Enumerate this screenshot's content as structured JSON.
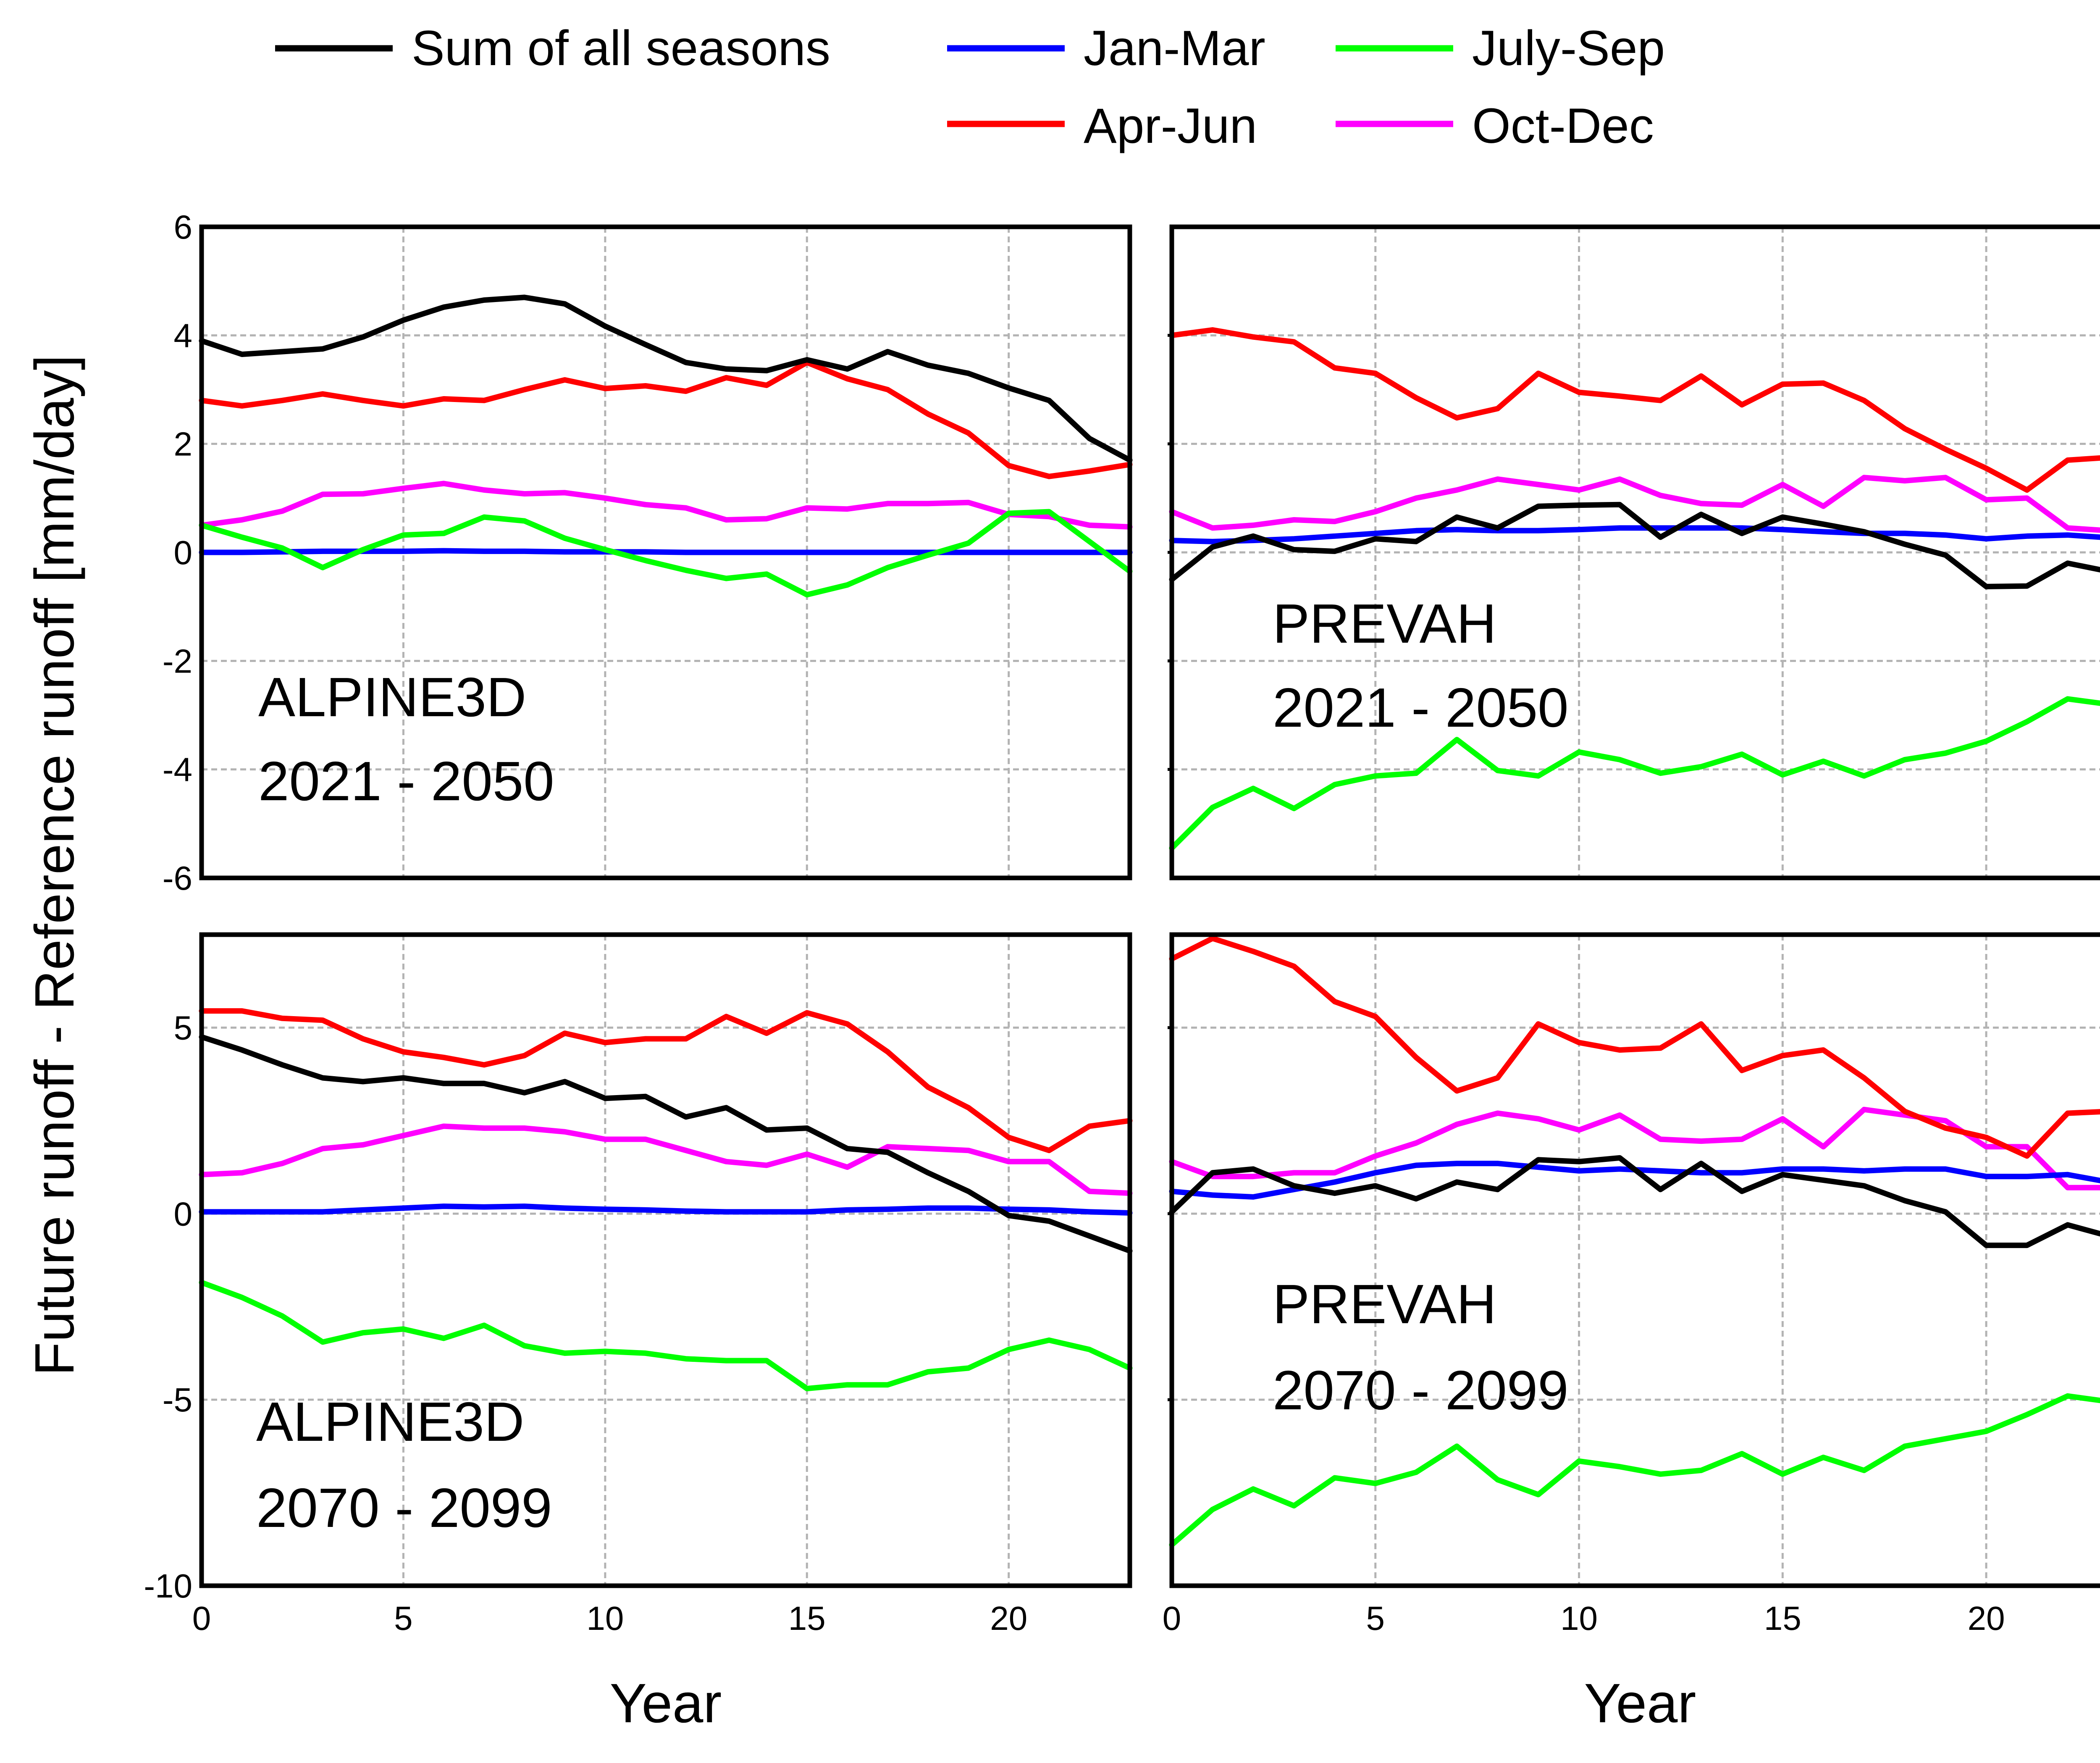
{
  "colors": {
    "sum": "#000000",
    "janmar": "#0000ff",
    "aprjun": "#ff0000",
    "julsep": "#00ff00",
    "octdec": "#ff00ff"
  },
  "legend": {
    "items": [
      {
        "key": "sum",
        "label": "Sum of all seasons"
      },
      {
        "key": "janmar",
        "label": "Jan-Mar"
      },
      {
        "key": "julsep",
        "label": "July-Sep"
      },
      {
        "key": "aprjun",
        "label": "Apr-Jun"
      },
      {
        "key": "octdec",
        "label": "Oct-Dec"
      }
    ]
  },
  "ylabel": "Future runoff - Reference runoff [mm/day]",
  "chart_data": [
    {
      "type": "line",
      "model": "ALPINE3D",
      "period": "2021 - 2050",
      "xlabel": "",
      "xlim": [
        0,
        23
      ],
      "ylim": [
        -6,
        6
      ],
      "xticks": [
        0,
        5,
        10,
        15,
        20
      ],
      "yticks": [
        -6,
        -4,
        -2,
        0,
        2,
        4,
        6
      ],
      "grid": true,
      "x": [
        0,
        1,
        2,
        3,
        4,
        5,
        6,
        7,
        8,
        9,
        10,
        11,
        12,
        13,
        14,
        15,
        16,
        17,
        18,
        19,
        20,
        21,
        22,
        23
      ],
      "series": [
        {
          "name": "Sum of all seasons",
          "key": "sum",
          "values": [
            3.9,
            3.65,
            3.7,
            3.75,
            3.97,
            4.28,
            4.52,
            4.65,
            4.7,
            4.58,
            4.17,
            3.83,
            3.5,
            3.38,
            3.35,
            3.55,
            3.38,
            3.7,
            3.45,
            3.3,
            3.03,
            2.8,
            2.1,
            1.7
          ]
        },
        {
          "name": "Jan-Mar",
          "key": "janmar",
          "values": [
            0.0,
            0.0,
            0.01,
            0.02,
            0.02,
            0.02,
            0.03,
            0.02,
            0.02,
            0.01,
            0.01,
            0.01,
            0.0,
            0.0,
            0.0,
            0.0,
            0.0,
            0.0,
            0.0,
            0.0,
            0.0,
            0.0,
            0.0,
            0.0
          ]
        },
        {
          "name": "Apr-Jun",
          "key": "aprjun",
          "values": [
            2.8,
            2.7,
            2.8,
            2.92,
            2.8,
            2.7,
            2.83,
            2.8,
            3.0,
            3.18,
            3.02,
            3.07,
            2.97,
            3.22,
            3.08,
            3.5,
            3.2,
            3.0,
            2.55,
            2.2,
            1.6,
            1.4,
            1.5,
            1.62
          ]
        },
        {
          "name": "July-Sep",
          "key": "julsep",
          "values": [
            0.5,
            0.28,
            0.08,
            -0.28,
            0.05,
            0.32,
            0.35,
            0.65,
            0.58,
            0.26,
            0.05,
            -0.15,
            -0.33,
            -0.48,
            -0.4,
            -0.78,
            -0.6,
            -0.28,
            -0.05,
            0.17,
            0.72,
            0.75,
            0.2,
            -0.35
          ]
        },
        {
          "name": "Oct-Dec",
          "key": "octdec",
          "values": [
            0.5,
            0.6,
            0.76,
            1.07,
            1.08,
            1.18,
            1.27,
            1.15,
            1.08,
            1.1,
            1.0,
            0.88,
            0.82,
            0.6,
            0.62,
            0.82,
            0.8,
            0.9,
            0.9,
            0.92,
            0.7,
            0.66,
            0.5,
            0.47
          ]
        }
      ]
    },
    {
      "type": "line",
      "model": "PREVAH",
      "period": "2021 - 2050",
      "xlabel": "",
      "xlim": [
        0,
        23
      ],
      "ylim": [
        -6,
        6
      ],
      "xticks": [
        0,
        5,
        10,
        15,
        20
      ],
      "yticks": [],
      "grid": true,
      "x": [
        0,
        1,
        2,
        3,
        4,
        5,
        6,
        7,
        8,
        9,
        10,
        11,
        12,
        13,
        14,
        15,
        16,
        17,
        18,
        19,
        20,
        21,
        22,
        23
      ],
      "series": [
        {
          "name": "Sum of all seasons",
          "key": "sum",
          "values": [
            -0.5,
            0.1,
            0.3,
            0.05,
            0.02,
            0.25,
            0.2,
            0.65,
            0.45,
            0.85,
            0.87,
            0.88,
            0.28,
            0.7,
            0.35,
            0.65,
            0.52,
            0.38,
            0.15,
            -0.05,
            -0.63,
            -0.62,
            -0.2,
            -0.35
          ]
        },
        {
          "name": "Jan-Mar",
          "key": "janmar",
          "values": [
            0.22,
            0.2,
            0.22,
            0.25,
            0.3,
            0.35,
            0.4,
            0.42,
            0.4,
            0.4,
            0.42,
            0.45,
            0.45,
            0.45,
            0.45,
            0.42,
            0.38,
            0.35,
            0.35,
            0.32,
            0.25,
            0.3,
            0.32,
            0.27
          ]
        },
        {
          "name": "Apr-Jun",
          "key": "aprjun",
          "values": [
            4.0,
            4.1,
            3.97,
            3.88,
            3.4,
            3.3,
            2.85,
            2.48,
            2.65,
            3.3,
            2.95,
            2.88,
            2.8,
            3.25,
            2.72,
            3.1,
            3.12,
            2.8,
            2.28,
            1.9,
            1.55,
            1.15,
            1.7,
            1.75
          ]
        },
        {
          "name": "July-Sep",
          "key": "julsep",
          "values": [
            -5.45,
            -4.7,
            -4.35,
            -4.72,
            -4.28,
            -4.12,
            -4.07,
            -3.45,
            -4.02,
            -4.12,
            -3.68,
            -3.82,
            -4.07,
            -3.95,
            -3.72,
            -4.1,
            -3.85,
            -4.12,
            -3.82,
            -3.7,
            -3.48,
            -3.12,
            -2.7,
            -2.8
          ]
        },
        {
          "name": "Oct-Dec",
          "key": "octdec",
          "values": [
            0.75,
            0.45,
            0.5,
            0.6,
            0.57,
            0.75,
            1.0,
            1.15,
            1.35,
            1.25,
            1.15,
            1.35,
            1.05,
            0.9,
            0.87,
            1.25,
            0.85,
            1.38,
            1.32,
            1.38,
            0.97,
            1.0,
            0.45,
            0.4
          ]
        }
      ]
    },
    {
      "type": "line",
      "model": "ALPINE3D",
      "period": "2070 - 2099",
      "xlabel": "Year",
      "xlim": [
        0,
        23
      ],
      "ylim": [
        -10,
        7.5
      ],
      "xticks": [
        0,
        5,
        10,
        15,
        20
      ],
      "yticks": [
        -10,
        -5,
        0,
        5
      ],
      "grid": true,
      "x": [
        0,
        1,
        2,
        3,
        4,
        5,
        6,
        7,
        8,
        9,
        10,
        11,
        12,
        13,
        14,
        15,
        16,
        17,
        18,
        19,
        20,
        21,
        22,
        23
      ],
      "series": [
        {
          "name": "Sum of all seasons",
          "key": "sum",
          "values": [
            4.75,
            4.4,
            4.0,
            3.65,
            3.55,
            3.65,
            3.5,
            3.5,
            3.25,
            3.55,
            3.1,
            3.15,
            2.6,
            2.85,
            2.25,
            2.3,
            1.75,
            1.65,
            1.1,
            0.6,
            -0.05,
            -0.2,
            -0.6,
            -1.0
          ]
        },
        {
          "name": "Jan-Mar",
          "key": "janmar",
          "values": [
            0.05,
            0.05,
            0.05,
            0.05,
            0.1,
            0.15,
            0.2,
            0.18,
            0.2,
            0.15,
            0.12,
            0.1,
            0.07,
            0.05,
            0.05,
            0.05,
            0.1,
            0.12,
            0.15,
            0.15,
            0.12,
            0.1,
            0.05,
            0.02
          ]
        },
        {
          "name": "Apr-Jun",
          "key": "aprjun",
          "values": [
            5.45,
            5.45,
            5.25,
            5.2,
            4.7,
            4.35,
            4.2,
            4.0,
            4.25,
            4.85,
            4.6,
            4.7,
            4.7,
            5.3,
            4.85,
            5.4,
            5.1,
            4.35,
            3.4,
            2.85,
            2.05,
            1.7,
            2.35,
            2.5
          ]
        },
        {
          "name": "July-Sep",
          "key": "julsep",
          "values": [
            -1.85,
            -2.25,
            -2.75,
            -3.45,
            -3.2,
            -3.1,
            -3.35,
            -3.0,
            -3.55,
            -3.75,
            -3.7,
            -3.75,
            -3.9,
            -3.95,
            -3.95,
            -4.7,
            -4.6,
            -4.6,
            -4.25,
            -4.15,
            -3.65,
            -3.4,
            -3.65,
            -4.15
          ]
        },
        {
          "name": "Oct-Dec",
          "key": "octdec",
          "values": [
            1.05,
            1.1,
            1.35,
            1.75,
            1.85,
            2.1,
            2.35,
            2.3,
            2.3,
            2.2,
            2.0,
            2.0,
            1.7,
            1.4,
            1.3,
            1.6,
            1.25,
            1.8,
            1.75,
            1.7,
            1.4,
            1.4,
            0.6,
            0.55
          ]
        }
      ]
    },
    {
      "type": "line",
      "model": "PREVAH",
      "period": "2070 - 2099",
      "xlabel": "Year",
      "xlim": [
        0,
        23
      ],
      "ylim": [
        -10,
        7.5
      ],
      "xticks": [
        0,
        5,
        10,
        15,
        20
      ],
      "yticks": [],
      "grid": true,
      "x": [
        0,
        1,
        2,
        3,
        4,
        5,
        6,
        7,
        8,
        9,
        10,
        11,
        12,
        13,
        14,
        15,
        16,
        17,
        18,
        19,
        20,
        21,
        22,
        23
      ],
      "series": [
        {
          "name": "Sum of all seasons",
          "key": "sum",
          "values": [
            0.05,
            1.1,
            1.2,
            0.75,
            0.55,
            0.75,
            0.4,
            0.85,
            0.65,
            1.45,
            1.4,
            1.5,
            0.65,
            1.35,
            0.6,
            1.05,
            0.9,
            0.75,
            0.35,
            0.05,
            -0.85,
            -0.85,
            -0.3,
            -0.6
          ]
        },
        {
          "name": "Jan-Mar",
          "key": "janmar",
          "values": [
            0.6,
            0.5,
            0.45,
            0.65,
            0.85,
            1.1,
            1.3,
            1.35,
            1.35,
            1.25,
            1.15,
            1.2,
            1.15,
            1.1,
            1.1,
            1.2,
            1.2,
            1.15,
            1.2,
            1.2,
            1.0,
            1.0,
            1.05,
            0.85
          ]
        },
        {
          "name": "Apr-Jun",
          "key": "aprjun",
          "values": [
            6.85,
            7.4,
            7.05,
            6.65,
            5.7,
            5.3,
            4.2,
            3.3,
            3.65,
            5.1,
            4.6,
            4.4,
            4.45,
            5.1,
            3.85,
            4.25,
            4.4,
            3.65,
            2.75,
            2.3,
            2.05,
            1.55,
            2.7,
            2.75
          ]
        },
        {
          "name": "July-Sep",
          "key": "julsep",
          "values": [
            -8.9,
            -7.95,
            -7.4,
            -7.85,
            -7.1,
            -7.25,
            -6.95,
            -6.25,
            -7.15,
            -7.55,
            -6.65,
            -6.8,
            -7.0,
            -6.9,
            -6.45,
            -7.0,
            -6.55,
            -6.9,
            -6.25,
            -6.05,
            -5.85,
            -5.4,
            -4.9,
            -5.05
          ]
        },
        {
          "name": "Oct-Dec",
          "key": "octdec",
          "values": [
            1.4,
            1.0,
            1.0,
            1.1,
            1.1,
            1.55,
            1.9,
            2.4,
            2.7,
            2.55,
            2.25,
            2.65,
            2.0,
            1.95,
            2.0,
            2.55,
            1.8,
            2.8,
            2.65,
            2.5,
            1.8,
            1.8,
            0.7,
            0.7
          ]
        }
      ]
    }
  ]
}
